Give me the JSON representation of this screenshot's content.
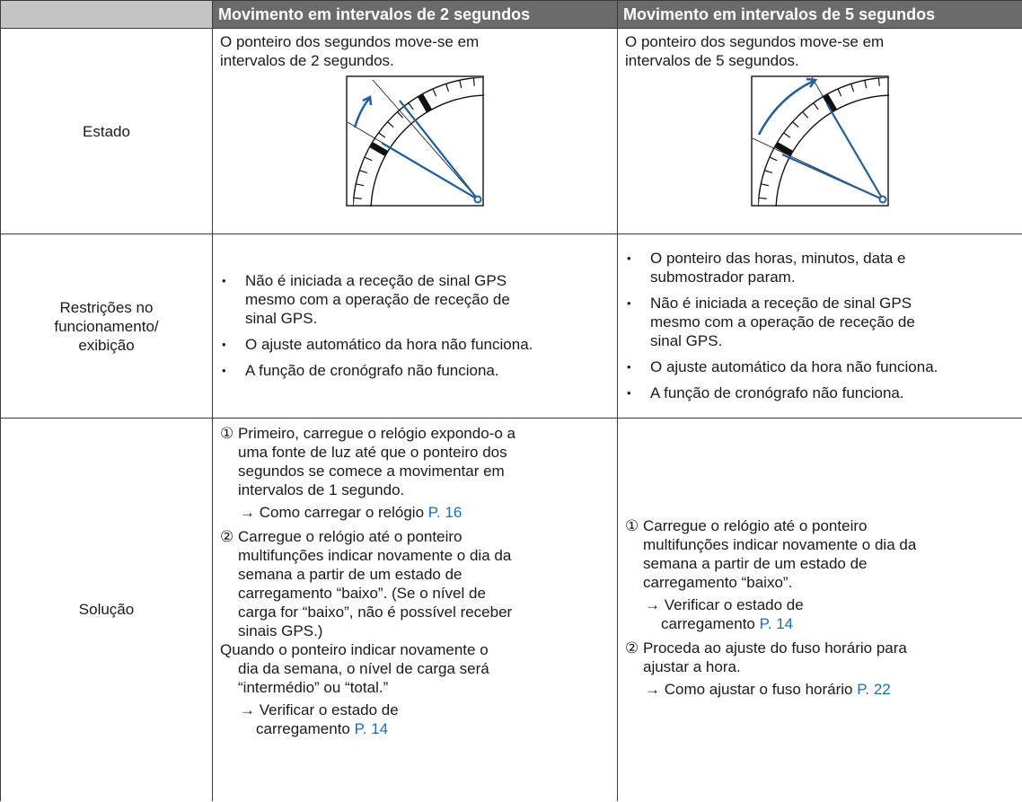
{
  "header": {
    "col_1": "Movimento em intervalos de 2 segundos",
    "col_2": "Movimento em intervalos de 5 segundos"
  },
  "rows": [
    {
      "label": [
        "Estado"
      ],
      "col_1": {
        "text": [
          "O ponteiro dos segundos move-se em",
          "intervalos de 2 segundos."
        ]
      },
      "col_2": {
        "text": [
          "O ponteiro dos segundos move-se em",
          "intervalos de 5 segundos."
        ]
      }
    },
    {
      "label": [
        "Restrições no",
        "funcionamento/",
        "exibição"
      ],
      "col_1": {
        "bullets": [
          [
            "Não é iniciada a receção de sinal GPS",
            "mesmo com a operação de receção de",
            "sinal GPS."
          ],
          [
            "O ajuste automático da hora não funciona."
          ],
          [
            "A função de cronógrafo não funciona."
          ]
        ]
      },
      "col_2": {
        "bullets": [
          [
            "O ponteiro das horas, minutos, data e",
            "submostrador param."
          ],
          [
            "Não é iniciada a receção de sinal GPS",
            "mesmo com a operação de receção de",
            "sinal GPS."
          ],
          [
            "O ajuste automático da hora não funciona."
          ],
          [
            "A função de cronógrafo não funciona."
          ]
        ]
      }
    },
    {
      "label": [
        "Solução"
      ],
      "col_1": {
        "steps": [
          {
            "text": [
              "① Primeiro, carregue o relógio expondo-o a",
              "uma fonte de luz até que o ponteiro dos",
              "segundos se comece a movimentar em",
              "intervalos de 1 segundo."
            ],
            "ref": [
              "→ Como carregar o relógio"
            ],
            "page": "P. 16"
          },
          {
            "text": [
              "② Carregue o relógio até o ponteiro",
              "multifunções indicar novamente o dia da",
              "semana a partir de um estado de",
              "carregamento “baixo”. (Se o nível de",
              "carga for “baixo”, não é possível receber",
              "sinais GPS.)"
            ],
            "note": [
              "Quando o ponteiro indicar novamente o",
              "dia da semana, o nível de carga será",
              "“intermédio” ou “total.”"
            ],
            "ref": [
              "→ Verificar o estado de",
              "carregamento"
            ],
            "page": "P. 14"
          }
        ]
      },
      "col_2": {
        "steps": [
          {
            "text": [
              "① Carregue o relógio até o ponteiro",
              "multifunções indicar novamente o dia da",
              "semana a partir de um estado de",
              "carregamento “baixo”."
            ],
            "ref": [
              "→ Verificar o estado de",
              "carregamento"
            ],
            "page": "P. 14"
          },
          {
            "text": [
              "② Proceda ao ajuste do fuso horário para",
              "ajustar a hora."
            ],
            "ref": [
              "→ Como ajustar o fuso horário"
            ],
            "page": "P. 22"
          }
        ]
      }
    }
  ]
}
